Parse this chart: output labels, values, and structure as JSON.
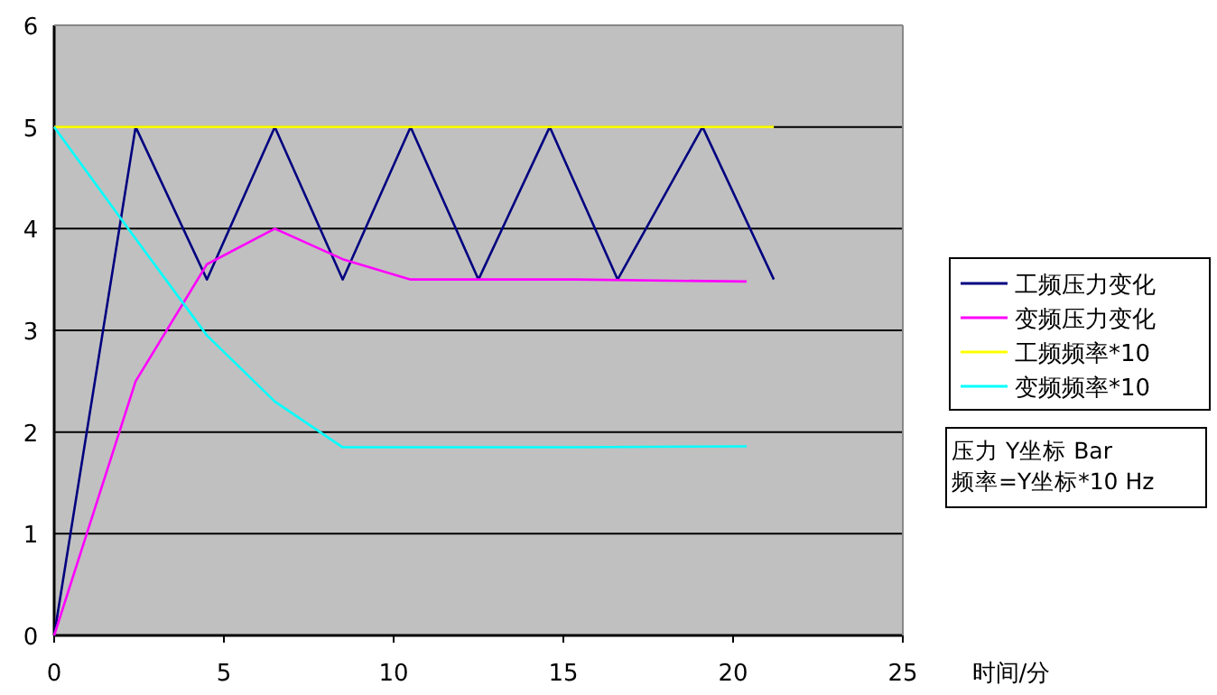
{
  "chart_data": {
    "type": "line",
    "xlabel": "时间/分",
    "xlim": [
      0,
      25
    ],
    "xticks": [
      0,
      5,
      10,
      15,
      20,
      25
    ],
    "ylim": [
      0,
      6
    ],
    "yticks": [
      0,
      1,
      2,
      3,
      4,
      5,
      6
    ],
    "grid": "y",
    "legend": "right",
    "annotations": [
      "压力 Y坐标 Bar\n频率=Y坐标*10 Hz"
    ],
    "series": [
      {
        "name": "工频压力变化",
        "color": "#000080",
        "x": [
          0,
          2.4,
          4.5,
          6.5,
          8.5,
          10.5,
          12.5,
          14.6,
          16.6,
          19.1,
          21.2
        ],
        "values": [
          0,
          5,
          3.5,
          5,
          3.5,
          5,
          3.5,
          5,
          3.5,
          5,
          3.5
        ]
      },
      {
        "name": "变频压力变化",
        "color": "#ff00ff",
        "x": [
          0,
          2.4,
          4.5,
          6.5,
          8.5,
          10.5,
          15.3,
          20.4
        ],
        "values": [
          0,
          2.5,
          3.65,
          4,
          3.7,
          3.5,
          3.5,
          3.48
        ]
      },
      {
        "name": "工频频率*10",
        "color": "#ffff00",
        "x": [
          0,
          21.2
        ],
        "values": [
          5,
          5
        ]
      },
      {
        "name": "变频频率*10",
        "color": "#00ffff",
        "x": [
          0,
          2.4,
          4.5,
          6.5,
          8.5,
          15.3,
          20.4
        ],
        "values": [
          5,
          3.9,
          2.95,
          2.3,
          1.85,
          1.85,
          1.86
        ]
      }
    ]
  }
}
